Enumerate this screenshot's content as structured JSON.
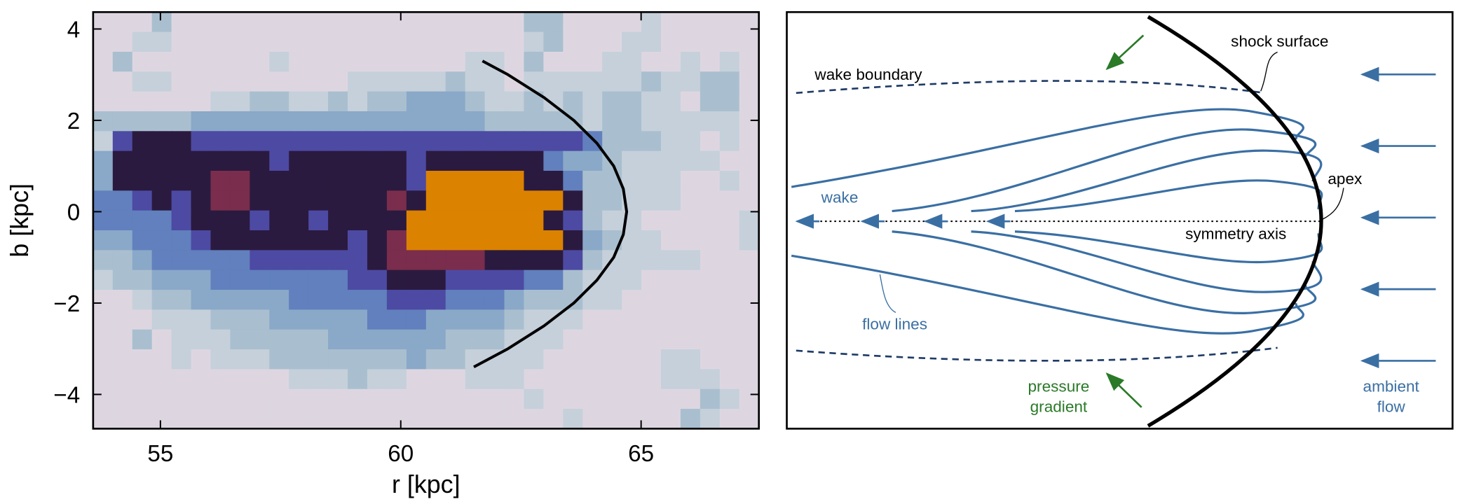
{
  "chart_data": {
    "type": "heatmap",
    "xlabel": "r  [kpc]",
    "ylabel": "b  [kpc]",
    "xlim": [
      53.6,
      67.45
    ],
    "ylim": [
      -4.75,
      4.37
    ],
    "xticks": [
      55,
      60,
      65
    ],
    "yticks": [
      {
        "value": -4,
        "label": "−4"
      },
      {
        "value": -2,
        "label": "−2"
      },
      0,
      2,
      4
    ],
    "colors": [
      "#ddd6e1",
      "#c5d0da",
      "#a9bfcf",
      "#8aa8c8",
      "#6180bd",
      "#4d4aa3",
      "#2b1a3f",
      "#7a2d4c",
      "#db8200"
    ],
    "z": [
      [
        0,
        0,
        0,
        2,
        0,
        0,
        0,
        0,
        0,
        0,
        0,
        0,
        0,
        0,
        0,
        0,
        0,
        0,
        0,
        0,
        0,
        0,
        2,
        2,
        0,
        0,
        0,
        0,
        1,
        0,
        0,
        0,
        0,
        0
      ],
      [
        0,
        0,
        1,
        1,
        0,
        0,
        0,
        0,
        0,
        0,
        0,
        0,
        0,
        0,
        0,
        0,
        0,
        0,
        0,
        0,
        0,
        0,
        1,
        2,
        0,
        0,
        0,
        1,
        1,
        0,
        0,
        0,
        0,
        0
      ],
      [
        0,
        2,
        0,
        0,
        0,
        0,
        0,
        0,
        0,
        1,
        0,
        0,
        0,
        0,
        0,
        0,
        0,
        0,
        0,
        1,
        1,
        0,
        2,
        0,
        0,
        0,
        1,
        1,
        0,
        0,
        1,
        0,
        1,
        0
      ],
      [
        0,
        0,
        1,
        1,
        0,
        0,
        0,
        0,
        0,
        0,
        0,
        0,
        0,
        1,
        1,
        1,
        1,
        1,
        2,
        1,
        1,
        0,
        1,
        1,
        1,
        1,
        1,
        1,
        2,
        1,
        1,
        2,
        2,
        0
      ],
      [
        0,
        0,
        0,
        0,
        0,
        0,
        1,
        1,
        2,
        2,
        1,
        1,
        2,
        1,
        2,
        2,
        3,
        3,
        3,
        2,
        1,
        1,
        2,
        1,
        2,
        1,
        2,
        2,
        1,
        1,
        0,
        2,
        2,
        0
      ],
      [
        2,
        2,
        2,
        2,
        2,
        3,
        3,
        3,
        3,
        3,
        3,
        3,
        3,
        3,
        3,
        3,
        3,
        3,
        3,
        3,
        2,
        2,
        2,
        2,
        2,
        1,
        2,
        2,
        1,
        1,
        1,
        1,
        1,
        0
      ],
      [
        1,
        5,
        6,
        6,
        6,
        5,
        5,
        5,
        5,
        5,
        5,
        5,
        5,
        5,
        5,
        5,
        5,
        5,
        5,
        5,
        5,
        5,
        5,
        5,
        5,
        4,
        2,
        2,
        2,
        1,
        1,
        0,
        1,
        0
      ],
      [
        3,
        6,
        6,
        6,
        6,
        6,
        6,
        6,
        6,
        5,
        6,
        6,
        6,
        6,
        6,
        6,
        5,
        6,
        6,
        6,
        6,
        6,
        6,
        4,
        3,
        3,
        2,
        1,
        1,
        1,
        1,
        1,
        0,
        0
      ],
      [
        3,
        6,
        6,
        6,
        6,
        6,
        7,
        7,
        6,
        6,
        6,
        6,
        6,
        6,
        6,
        6,
        5,
        8,
        8,
        8,
        8,
        8,
        6,
        6,
        4,
        2,
        2,
        1,
        1,
        1,
        0,
        0,
        1,
        0
      ],
      [
        4,
        4,
        5,
        6,
        5,
        6,
        7,
        7,
        6,
        6,
        6,
        6,
        6,
        6,
        6,
        7,
        6,
        8,
        8,
        8,
        8,
        8,
        8,
        8,
        6,
        2,
        2,
        1,
        1,
        1,
        0,
        0,
        0,
        0
      ],
      [
        4,
        4,
        4,
        4,
        5,
        6,
        6,
        6,
        5,
        6,
        6,
        5,
        6,
        6,
        6,
        6,
        8,
        8,
        8,
        8,
        8,
        8,
        8,
        6,
        5,
        2,
        1,
        1,
        0,
        0,
        0,
        0,
        0,
        1
      ],
      [
        3,
        3,
        4,
        4,
        4,
        5,
        6,
        6,
        6,
        6,
        6,
        6,
        6,
        5,
        6,
        7,
        8,
        8,
        8,
        8,
        8,
        8,
        8,
        8,
        6,
        3,
        2,
        1,
        1,
        0,
        0,
        0,
        0,
        1
      ],
      [
        2,
        2,
        3,
        4,
        4,
        4,
        4,
        4,
        5,
        5,
        5,
        5,
        5,
        5,
        6,
        7,
        7,
        7,
        7,
        7,
        6,
        6,
        6,
        6,
        5,
        2,
        1,
        1,
        1,
        1,
        1,
        0,
        0,
        0
      ],
      [
        1,
        2,
        2,
        3,
        3,
        3,
        4,
        4,
        4,
        4,
        4,
        4,
        4,
        5,
        5,
        6,
        6,
        6,
        5,
        5,
        5,
        5,
        4,
        4,
        2,
        1,
        1,
        1,
        0,
        0,
        0,
        0,
        0,
        0
      ],
      [
        0,
        0,
        1,
        2,
        2,
        3,
        3,
        3,
        3,
        3,
        4,
        4,
        4,
        4,
        4,
        5,
        5,
        5,
        4,
        4,
        4,
        3,
        2,
        2,
        2,
        1,
        1,
        0,
        0,
        0,
        0,
        0,
        0,
        0
      ],
      [
        0,
        0,
        0,
        1,
        1,
        1,
        2,
        2,
        2,
        3,
        3,
        3,
        3,
        3,
        4,
        4,
        4,
        3,
        3,
        3,
        3,
        2,
        1,
        1,
        1,
        0,
        0,
        0,
        0,
        0,
        0,
        0,
        0,
        0
      ],
      [
        0,
        0,
        2,
        0,
        1,
        1,
        1,
        2,
        2,
        2,
        2,
        2,
        3,
        3,
        3,
        3,
        3,
        3,
        2,
        2,
        2,
        1,
        1,
        1,
        0,
        0,
        0,
        0,
        0,
        0,
        0,
        0,
        0,
        0
      ],
      [
        0,
        0,
        0,
        0,
        1,
        0,
        1,
        1,
        1,
        2,
        2,
        2,
        2,
        2,
        2,
        2,
        3,
        2,
        2,
        1,
        1,
        1,
        1,
        0,
        0,
        0,
        0,
        0,
        0,
        1,
        1,
        0,
        0,
        0
      ],
      [
        0,
        0,
        0,
        0,
        0,
        0,
        0,
        0,
        0,
        0,
        1,
        1,
        1,
        2,
        1,
        1,
        0,
        0,
        0,
        1,
        1,
        1,
        0,
        0,
        0,
        0,
        0,
        0,
        0,
        1,
        1,
        1,
        0,
        0
      ],
      [
        0,
        0,
        0,
        0,
        0,
        0,
        0,
        0,
        0,
        0,
        0,
        0,
        0,
        0,
        0,
        0,
        0,
        0,
        0,
        0,
        0,
        0,
        1,
        0,
        0,
        0,
        0,
        0,
        0,
        0,
        0,
        2,
        1,
        0
      ],
      [
        0,
        0,
        0,
        0,
        0,
        0,
        0,
        0,
        0,
        0,
        0,
        0,
        0,
        0,
        0,
        0,
        0,
        0,
        0,
        0,
        0,
        0,
        0,
        0,
        1,
        0,
        0,
        0,
        0,
        0,
        2,
        1,
        0,
        0
      ]
    ],
    "line": {
      "color": "#000000",
      "x": [
        61.7,
        62.23,
        62.98,
        63.6,
        64.08,
        64.43,
        64.63,
        64.7,
        64.63,
        64.43,
        64.08,
        63.6,
        62.98,
        62.23,
        61.52
      ],
      "y": [
        3.3,
        3.0,
        2.5,
        2.0,
        1.5,
        1.0,
        0.5,
        0,
        -0.5,
        -1.0,
        -1.5,
        -2.0,
        -2.5,
        -3.0,
        -3.4
      ]
    }
  },
  "diagram": {
    "shock": "shock surface",
    "wake_boundary": "wake boundary",
    "apex": "apex",
    "wake": "wake",
    "axis": "symmetry axis",
    "flow_lines": "flow lines",
    "pressure": [
      "pressure",
      "gradient"
    ],
    "ambient": [
      "ambient",
      "flow"
    ]
  }
}
